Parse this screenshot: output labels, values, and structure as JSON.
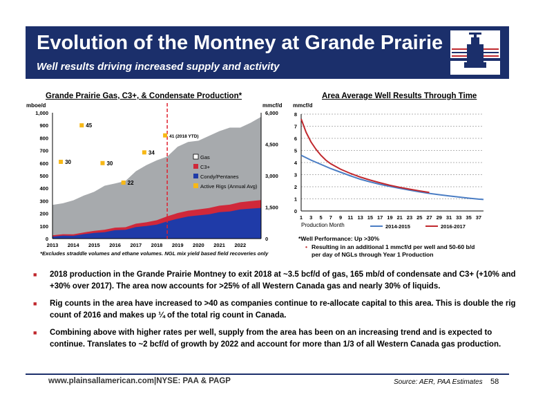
{
  "header": {
    "title": "Evolution of the Montney at Grande Prairie",
    "subtitle": "Well results driving increased supply and activity"
  },
  "chart_data": [
    {
      "type": "area",
      "title": "Grande Prairie Gas, C3+, & Condensate Production*",
      "ylabel_left": "mboe/d",
      "ylabel_right": "mmcf/d",
      "x_ticks": [
        "2013",
        "2014",
        "2015",
        "2016",
        "2017",
        "2018",
        "2019",
        "2020",
        "2021",
        "2022"
      ],
      "xlim": [
        2013,
        2023
      ],
      "y_ticks_left": [
        "0",
        "100",
        "200",
        "300",
        "400",
        "500",
        "600",
        "700",
        "800",
        "900",
        "1,000"
      ],
      "ylim_left": [
        0,
        1000
      ],
      "y_ticks_right": [
        "0",
        "1,500",
        "3,000",
        "4,500",
        "6,000"
      ],
      "ylim_right": [
        0,
        6000
      ],
      "x": [
        2013.0,
        2013.5,
        2014.0,
        2014.5,
        2015.0,
        2015.5,
        2016.0,
        2016.5,
        2017.0,
        2017.5,
        2018.0,
        2018.5,
        2019.0,
        2019.5,
        2020.0,
        2020.5,
        2021.0,
        2021.5,
        2022.0,
        2022.5,
        2023.0
      ],
      "series": [
        {
          "name": "Condy/Pentanes",
          "color": "#1f3ba8",
          "values": [
            20,
            22,
            25,
            32,
            45,
            55,
            65,
            72,
            88,
            100,
            115,
            135,
            160,
            172,
            185,
            197,
            208,
            218,
            228,
            238,
            248
          ]
        },
        {
          "name": "C3+",
          "color": "#d0283a",
          "values": [
            30,
            33,
            36,
            45,
            62,
            75,
            85,
            93,
            115,
            130,
            150,
            175,
            205,
            218,
            232,
            247,
            260,
            272,
            285,
            298,
            310
          ]
        },
        {
          "name": "Gas",
          "color": "#a7aaad",
          "values": [
            280,
            285,
            300,
            330,
            380,
            420,
            430,
            470,
            540,
            580,
            610,
            660,
            730,
            760,
            790,
            820,
            850,
            870,
            890,
            920,
            960
          ]
        }
      ],
      "active_rigs": {
        "name": "Active Rigs (Annual Avg)",
        "color": "#f7b817",
        "points": [
          {
            "x": 2013.4,
            "y": 610,
            "label": "30"
          },
          {
            "x": 2014.4,
            "y": 900,
            "label": "45"
          },
          {
            "x": 2015.4,
            "y": 600,
            "label": "30"
          },
          {
            "x": 2016.4,
            "y": 445,
            "label": "22"
          },
          {
            "x": 2017.4,
            "y": 685,
            "label": "34"
          },
          {
            "x": 2018.4,
            "y": 820,
            "label": "41 (2018 YTD)"
          }
        ]
      },
      "divider_x": 2018.5,
      "legend": [
        "Gas",
        "C3+",
        "Condy/Pentanes",
        "Active Rigs (Annual Avg)"
      ],
      "footnote": "*Excludes straddle volumes and  ethane volumes. NGL mix yield based field recoveries only"
    },
    {
      "type": "line",
      "title": "Area Average Well Results Through Time",
      "ylabel": "mmcf/d",
      "xlabel": "Production Month",
      "x_ticks": [
        "1",
        "3",
        "5",
        "7",
        "9",
        "11",
        "13",
        "15",
        "17",
        "19",
        "21",
        "23",
        "25",
        "27",
        "29",
        "31",
        "33",
        "35",
        "37"
      ],
      "xlim": [
        1,
        38
      ],
      "y_ticks": [
        "0",
        "1",
        "2",
        "3",
        "4",
        "5",
        "6",
        "7",
        "8"
      ],
      "ylim": [
        0,
        8
      ],
      "series": [
        {
          "name": "2014-2015",
          "color": "#4a7dc4",
          "x": [
            1,
            3,
            5,
            7,
            9,
            11,
            13,
            15,
            17,
            19,
            21,
            23,
            25,
            27,
            29,
            31,
            33,
            35,
            37,
            38
          ],
          "values": [
            4.6,
            4.2,
            3.85,
            3.5,
            3.2,
            2.9,
            2.62,
            2.4,
            2.2,
            2.03,
            1.87,
            1.72,
            1.58,
            1.45,
            1.34,
            1.24,
            1.15,
            1.06,
            0.98,
            0.95
          ]
        },
        {
          "name": "2016-2017",
          "color": "#c0282d",
          "x": [
            1,
            2,
            3,
            4,
            5,
            6,
            7,
            9,
            11,
            13,
            15,
            17,
            19,
            21,
            23,
            25,
            27
          ],
          "values": [
            7.6,
            6.5,
            5.7,
            5.1,
            4.6,
            4.2,
            3.9,
            3.45,
            3.1,
            2.8,
            2.55,
            2.33,
            2.12,
            1.95,
            1.8,
            1.66,
            1.53
          ]
        }
      ],
      "legend": [
        "2014-2015",
        "2016-2017"
      ]
    }
  ],
  "well_performance": {
    "heading": "*Well Performance: Up >30%",
    "detail": "Resulting in an additional 1 mmcf/d per well and 50-60 b/d per day of NGLs through Year 1 Production"
  },
  "bullets": [
    "2018 production in the Grande Prairie Montney to exit 2018 at ~3.5 bcf/d of gas, 165 mb/d of condensate and C3+ (+10% and +30% over 2017). The area now accounts for >25% of all Western Canada gas and nearly 30% of liquids.",
    "Rig counts in the area have increased to >40 as companies continue to re-allocate capital to this area. This is double the rig count of 2016 and makes up ¼ of the total rig count in Canada.",
    "Combining above with higher rates per well, supply from the area has been on an increasing trend and is expected to continue. Translates to ~2 bcf/d of growth by 2022 and account for more than 1/3 of all Western Canada gas production."
  ],
  "footer": {
    "website": "www.plainsallamerican.com",
    "ticker": "NYSE: PAA & PAGP",
    "source": "Source: AER, PAA Estimates",
    "page": "58"
  },
  "colors": {
    "navy": "#1b2f6b",
    "red": "#c0282d"
  }
}
